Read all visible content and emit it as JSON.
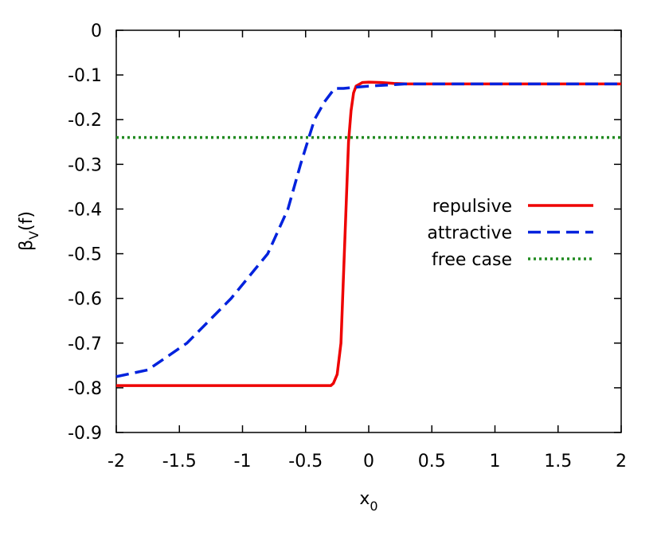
{
  "chart_data": {
    "type": "line",
    "xlabel": [
      "x",
      "0"
    ],
    "ylabel": [
      "β",
      "V",
      "(f)"
    ],
    "xlim": [
      -2,
      2
    ],
    "ylim": [
      -0.9,
      0
    ],
    "xticks": [
      -2,
      -1.5,
      -1,
      -0.5,
      0,
      0.5,
      1,
      1.5,
      2
    ],
    "yticks": [
      0,
      -0.1,
      -0.2,
      -0.3,
      -0.4,
      -0.5,
      -0.6,
      -0.7,
      -0.8,
      -0.9
    ],
    "legend": "right",
    "series": [
      {
        "name": "repulsive",
        "color": "#ee0000",
        "style": "solid",
        "x": [
          -2,
          -1,
          -0.5,
          -0.3,
          -0.28,
          -0.25,
          -0.22,
          -0.2,
          -0.18,
          -0.16,
          -0.14,
          -0.12,
          -0.1,
          -0.05,
          0,
          0.1,
          0.2,
          0.3,
          2
        ],
        "values": [
          -0.795,
          -0.795,
          -0.795,
          -0.795,
          -0.79,
          -0.77,
          -0.7,
          -0.55,
          -0.4,
          -0.25,
          -0.18,
          -0.14,
          -0.125,
          -0.117,
          -0.116,
          -0.117,
          -0.119,
          -0.12,
          -0.12
        ]
      },
      {
        "name": "attractive",
        "color": "#0022dd",
        "style": "dashed",
        "x": [
          -2,
          -1.75,
          -1.44,
          -1.09,
          -0.8,
          -0.64,
          -0.54,
          -0.43,
          -0.35,
          -0.27,
          -0.2,
          0,
          0.3,
          2
        ],
        "values": [
          -0.775,
          -0.76,
          -0.7,
          -0.6,
          -0.5,
          -0.4,
          -0.3,
          -0.2,
          -0.16,
          -0.13,
          -0.13,
          -0.125,
          -0.12,
          -0.12
        ]
      },
      {
        "name": "free case",
        "color": "#228b22",
        "style": "dotted",
        "x": [
          -2,
          2
        ],
        "values": [
          -0.24,
          -0.24
        ]
      }
    ]
  }
}
